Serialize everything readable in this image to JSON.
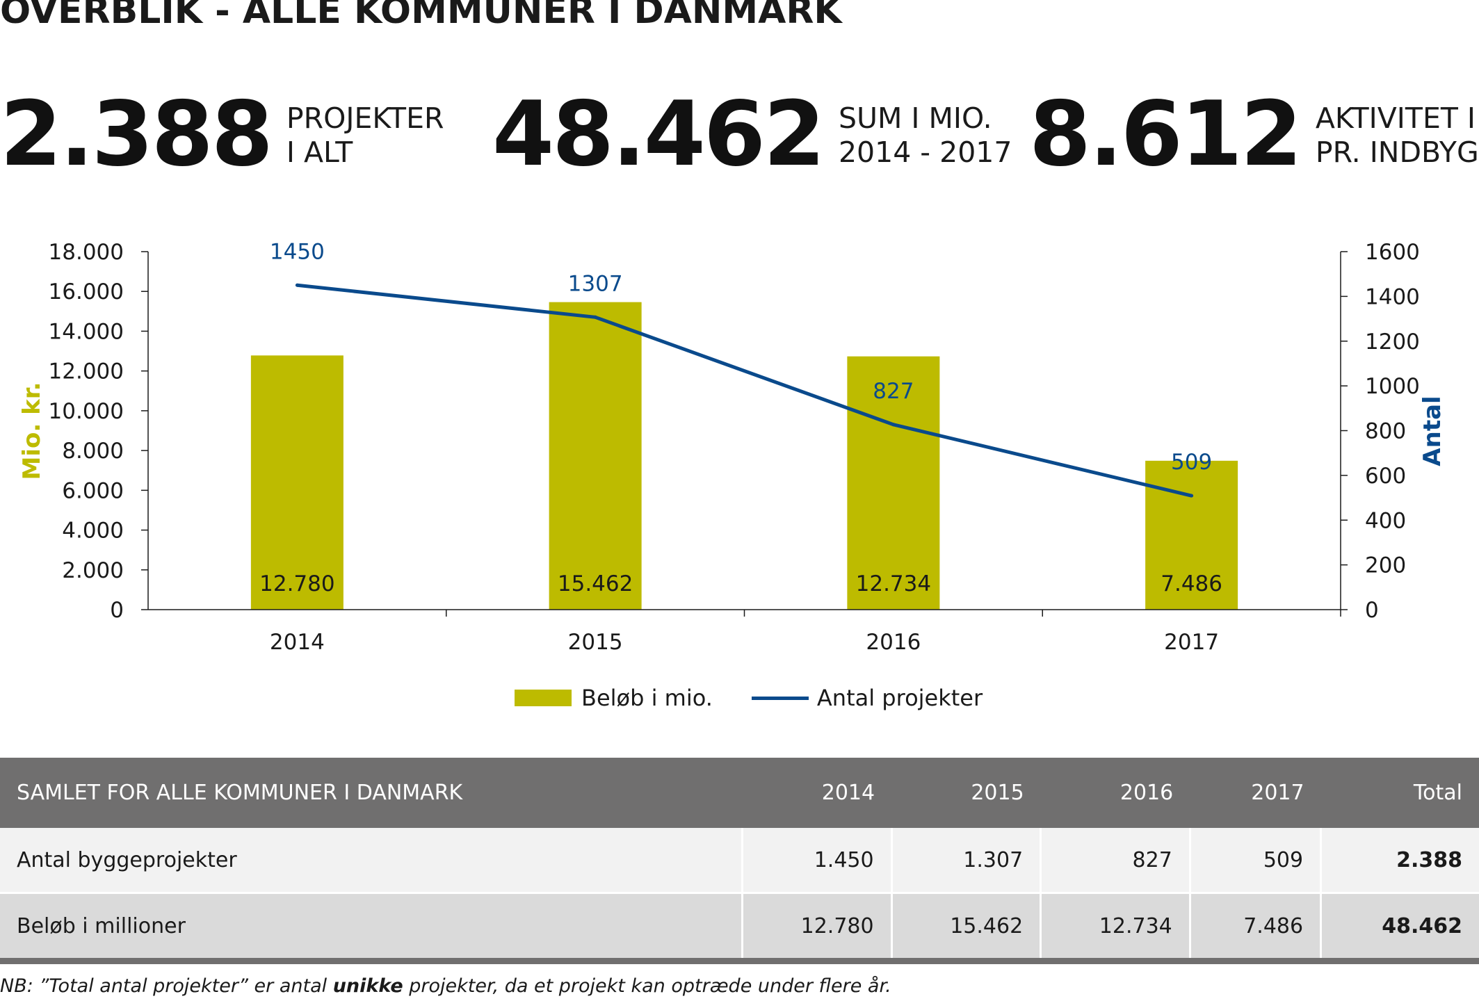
{
  "title": "OVERBLIK - ALLE KOMMUNER I DANMARK",
  "kpis": [
    {
      "value": "2.388",
      "label_line1": "PROJEKTER",
      "label_line2": "I ALT"
    },
    {
      "value": "48.462",
      "label_line1": "SUM I MIO.",
      "label_line2": "2014 - 2017"
    },
    {
      "value": "8.612",
      "label_line1": "AKTIVITET I KR.",
      "label_line2": "PR. INDBYGGER"
    }
  ],
  "chart_data": {
    "type": "bar",
    "categories": [
      "2014",
      "2015",
      "2016",
      "2017"
    ],
    "series": [
      {
        "name": "Beløb i mio.",
        "type": "bar",
        "axis": "left",
        "values": [
          12780,
          15462,
          12734,
          7486
        ],
        "labels": [
          "12.780",
          "15.462",
          "12.734",
          "7.486"
        ],
        "color": "#bdbb00"
      },
      {
        "name": "Antal projekter",
        "type": "line",
        "axis": "right",
        "values": [
          1450,
          1307,
          827,
          509
        ],
        "labels": [
          "1450",
          "1307",
          "827",
          "509"
        ],
        "color": "#0a4a8c"
      }
    ],
    "y_left": {
      "label": "Mio. kr.",
      "min": 0,
      "max": 18000,
      "ticks": [
        "0",
        "2.000",
        "4.000",
        "6.000",
        "8.000",
        "10.000",
        "12.000",
        "14.000",
        "16.000",
        "18.000"
      ],
      "label_color": "#bdbb00"
    },
    "y_right": {
      "label": "Antal",
      "min": 0,
      "max": 1600,
      "ticks": [
        "0",
        "200",
        "400",
        "600",
        "800",
        "1000",
        "1200",
        "1400",
        "1600"
      ],
      "label_color": "#0a4a8c"
    },
    "legend_position": "bottom",
    "grid": false
  },
  "table": {
    "header": [
      "SAMLET FOR ALLE KOMMUNER I DANMARK",
      "2014",
      "2015",
      "2016",
      "2017",
      "Total"
    ],
    "rows": [
      [
        "Antal byggeprojekter",
        "1.450",
        "1.307",
        "827",
        "509",
        "2.388"
      ],
      [
        "Beløb i millioner",
        "12.780",
        "15.462",
        "12.734",
        "7.486",
        "48.462"
      ]
    ]
  },
  "footnote": {
    "part1": "NB: ”Total antal projekter” er antal ",
    "bold": "unikke",
    "part2": " projekter, da et projekt kan optræde under flere år."
  }
}
